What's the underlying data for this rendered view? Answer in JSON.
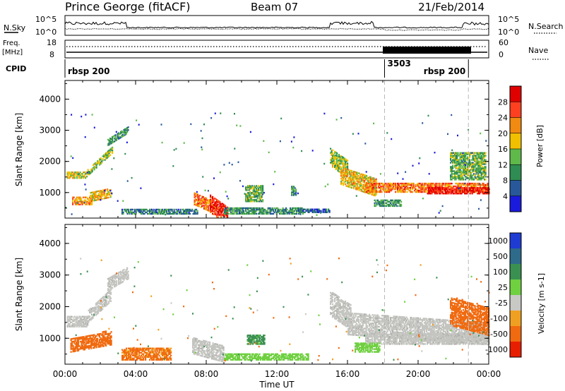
{
  "header": {
    "station": "Prince George (fitACF)",
    "beam": "Beam 07",
    "date": "21/Feb/2014"
  },
  "top_panels": {
    "nsky_label": "N.Sky",
    "nsearch_label": "N.Search",
    "nsky_ticks": [
      "10^5",
      "10^0"
    ],
    "nsearch_ticks": [
      "10^5",
      "10^0"
    ],
    "freq_label_1": "Freq.",
    "freq_label_2": "[MHz]",
    "freq_ticks": [
      "18",
      "8"
    ],
    "nave_label": "Nave",
    "nave_ticks": [
      "60",
      "0"
    ],
    "cpid_label": "CPID",
    "cpid_segments": [
      {
        "label": "rbsp 200",
        "start_hour": 0.0,
        "end_hour": 18.1
      },
      {
        "label": "3503",
        "start_hour": 18.1,
        "end_hour": 22.85
      },
      {
        "label": "rbsp 200",
        "start_hour": 22.85,
        "end_hour": 24.0
      }
    ]
  },
  "time_axis": {
    "label": "Time UT",
    "ticks": [
      "00:00",
      "04:00",
      "08:00",
      "12:00",
      "16:00",
      "20:00",
      "00:00"
    ],
    "range_hours": [
      0,
      24
    ]
  },
  "chart_data": [
    {
      "type": "heatmap",
      "title": "Power",
      "xlabel": "Time UT",
      "ylabel": "Slant Range [km]",
      "xlim_hours": [
        0,
        24
      ],
      "ylim_km": [
        180,
        4600
      ],
      "yticks": [
        "1000",
        "2000",
        "3000",
        "4000"
      ],
      "colorbar": {
        "label": "Power [dB]",
        "ticks": [
          "4",
          "8",
          "12",
          "16",
          "20",
          "24",
          "28"
        ],
        "range": [
          0,
          30
        ],
        "colors": [
          "#1a1adc",
          "#28589a",
          "#2f8c52",
          "#5fb84a",
          "#f0c000",
          "#f08a10",
          "#ff4020",
          "#e00000"
        ]
      },
      "echo_regions": [
        {
          "t0": 0.1,
          "t1": 1.2,
          "r0": 1450,
          "r1": 1650,
          "slope_km_per_h": 0,
          "value": 16
        },
        {
          "t0": 1.2,
          "t1": 2.7,
          "r0": 1500,
          "r1": 1700,
          "slope_km_per_h": 520,
          "value": 14
        },
        {
          "t0": 2.4,
          "t1": 3.6,
          "r0": 2500,
          "r1": 2700,
          "slope_km_per_h": 350,
          "value": 10
        },
        {
          "t0": 0.4,
          "t1": 1.5,
          "r0": 600,
          "r1": 850,
          "slope_km_per_h": 0,
          "value": 20
        },
        {
          "t0": 1.4,
          "t1": 2.6,
          "r0": 700,
          "r1": 1000,
          "slope_km_per_h": 120,
          "value": 18
        },
        {
          "t0": 3.2,
          "t1": 7.5,
          "r0": 300,
          "r1": 480,
          "slope_km_per_h": 0,
          "value": 8
        },
        {
          "t0": 7.3,
          "t1": 8.2,
          "r0": 600,
          "r1": 1000,
          "slope_km_per_h": -250,
          "value": 22
        },
        {
          "t0": 8.2,
          "t1": 9.2,
          "r0": 350,
          "r1": 900,
          "slope_km_per_h": -400,
          "value": 26
        },
        {
          "t0": 9.0,
          "t1": 13.5,
          "r0": 300,
          "r1": 500,
          "slope_km_per_h": 0,
          "value": 10
        },
        {
          "t0": 10.2,
          "t1": 11.2,
          "r0": 700,
          "r1": 1200,
          "slope_km_per_h": 0,
          "value": 12
        },
        {
          "t0": 12.8,
          "t1": 13.1,
          "r0": 900,
          "r1": 1200,
          "slope_km_per_h": 0,
          "value": 10
        },
        {
          "t0": 13.2,
          "t1": 15.0,
          "r0": 350,
          "r1": 450,
          "slope_km_per_h": 0,
          "value": 6
        },
        {
          "t0": 15.0,
          "t1": 16.0,
          "r0": 1850,
          "r1": 2400,
          "slope_km_per_h": -400,
          "value": 14
        },
        {
          "t0": 15.6,
          "t1": 17.6,
          "r0": 1250,
          "r1": 1800,
          "slope_km_per_h": -190,
          "value": 18
        },
        {
          "t0": 17.0,
          "t1": 24.0,
          "r0": 1000,
          "r1": 1300,
          "slope_km_per_h": 0,
          "value": 22
        },
        {
          "t0": 20.5,
          "t1": 24.0,
          "r0": 950,
          "r1": 1150,
          "slope_km_per_h": 0,
          "value": 28
        },
        {
          "t0": 17.5,
          "t1": 19.0,
          "r0": 550,
          "r1": 750,
          "slope_km_per_h": 0,
          "value": 10
        },
        {
          "t0": 21.8,
          "t1": 23.8,
          "r0": 1400,
          "r1": 2300,
          "slope_km_per_h": 0,
          "value": 12
        }
      ]
    },
    {
      "type": "heatmap",
      "title": "Velocity",
      "xlabel": "Time UT",
      "ylabel": "Slant Range [km]",
      "xlim_hours": [
        0,
        24
      ],
      "ylim_km": [
        180,
        4600
      ],
      "yticks": [
        "1000",
        "2000",
        "3000",
        "4000"
      ],
      "colorbar": {
        "label": "Velocity [m s-1]",
        "ticks": [
          "1000",
          "500",
          "100",
          "25",
          "-25",
          "-100",
          "-500",
          "-1000"
        ],
        "colors": [
          "#1e3cd2",
          "#2e6a8a",
          "#3a9050",
          "#6fd040",
          "#c8c8c4",
          "#f0a020",
          "#f06a10",
          "#e81e00"
        ]
      },
      "ground_scatter_color": "#c4c4c0",
      "echo_regions": [
        {
          "t0": 0.1,
          "t1": 1.3,
          "r0": 1350,
          "r1": 1700,
          "slope_km_per_h": 0,
          "value": 0,
          "gs": true
        },
        {
          "t0": 1.3,
          "t1": 2.6,
          "r0": 1500,
          "r1": 1900,
          "slope_km_per_h": 520,
          "value": 0,
          "gs": true
        },
        {
          "t0": 2.4,
          "t1": 3.6,
          "r0": 2500,
          "r1": 2900,
          "slope_km_per_h": 320,
          "value": 0,
          "gs": true
        },
        {
          "t0": 0.3,
          "t1": 2.6,
          "r0": 550,
          "r1": 1000,
          "slope_km_per_h": 100,
          "value": -300
        },
        {
          "t0": 3.2,
          "t1": 6.0,
          "r0": 300,
          "r1": 700,
          "slope_km_per_h": 0,
          "value": -150
        },
        {
          "t0": 7.2,
          "t1": 9.0,
          "r0": 500,
          "r1": 1000,
          "slope_km_per_h": -150,
          "value": 0,
          "gs": true
        },
        {
          "t0": 9.0,
          "t1": 13.8,
          "r0": 300,
          "r1": 500,
          "slope_km_per_h": 0,
          "value": 60
        },
        {
          "t0": 10.3,
          "t1": 11.3,
          "r0": 800,
          "r1": 1100,
          "slope_km_per_h": 0,
          "value": 200
        },
        {
          "t0": 15.0,
          "t1": 16.2,
          "r0": 1700,
          "r1": 2500,
          "slope_km_per_h": -380,
          "value": 0,
          "gs": true
        },
        {
          "t0": 16.0,
          "t1": 24.0,
          "r0": 1100,
          "r1": 1800,
          "slope_km_per_h": -40,
          "value": 0,
          "gs": true
        },
        {
          "t0": 17.0,
          "t1": 24.0,
          "r0": 800,
          "r1": 1150,
          "slope_km_per_h": 0,
          "value": 0,
          "gs": true
        },
        {
          "t0": 16.4,
          "t1": 17.8,
          "r0": 550,
          "r1": 850,
          "slope_km_per_h": 0,
          "value": 60
        },
        {
          "t0": 21.8,
          "t1": 24.0,
          "r0": 1400,
          "r1": 2300,
          "slope_km_per_h": -150,
          "value": -300
        }
      ]
    }
  ]
}
